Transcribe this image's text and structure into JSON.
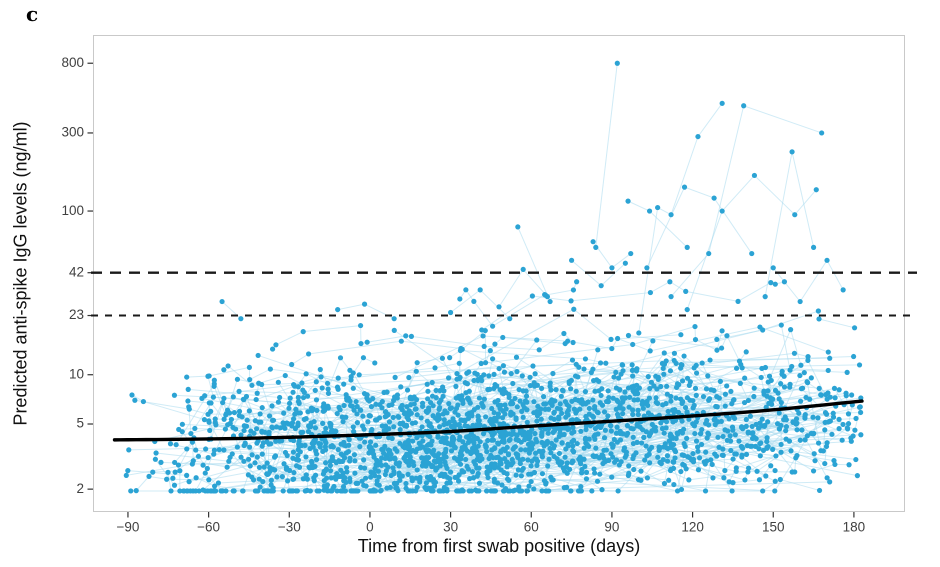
{
  "figure": {
    "panel_label": "c"
  },
  "chart_data": {
    "type": "scatter",
    "title": "",
    "panel_label": "c",
    "xlabel": "Time from first swab positive (days)",
    "ylabel": "Predicted anti-spike IgG levels (ng/ml)",
    "x_ticks": [
      -90,
      -60,
      -30,
      0,
      30,
      60,
      90,
      120,
      150,
      180
    ],
    "y_ticks": [
      2,
      5,
      10,
      23,
      42,
      100,
      300,
      800
    ],
    "y_scale": "log10",
    "x_range": [
      -103,
      199
    ],
    "y_range": [
      1.45,
      1190
    ],
    "grid": false,
    "legend": "none",
    "thresholds": [
      {
        "y": 42,
        "style": "dashed",
        "dash": [
          11,
          8
        ],
        "width": 2.4
      },
      {
        "y": 23,
        "style": "dashed",
        "dash": [
          7,
          7
        ],
        "width": 2.0
      }
    ],
    "trend_line": {
      "name": "population smooth",
      "points": [
        [
          -95,
          4.0
        ],
        [
          -60,
          4.05
        ],
        [
          -30,
          4.15
        ],
        [
          0,
          4.3
        ],
        [
          30,
          4.5
        ],
        [
          60,
          4.85
        ],
        [
          90,
          5.2
        ],
        [
          120,
          5.6
        ],
        [
          150,
          6.1
        ],
        [
          183,
          6.9
        ]
      ]
    },
    "highlight_trajectories": [
      [
        [
          84,
          60
        ],
        [
          92,
          800
        ]
      ],
      [
        [
          100,
          18
        ],
        [
          107,
          105
        ],
        [
          112,
          95
        ],
        [
          122,
          285
        ],
        [
          131,
          455
        ]
      ],
      [
        [
          112,
          30
        ],
        [
          126,
          55
        ],
        [
          139,
          440
        ],
        [
          168,
          300
        ]
      ],
      [
        [
          96,
          115
        ],
        [
          104,
          100
        ],
        [
          118,
          60
        ]
      ],
      [
        [
          55,
          80
        ],
        [
          67,
          28
        ]
      ],
      [
        [
          118,
          25
        ],
        [
          131,
          100
        ],
        [
          143,
          165
        ],
        [
          158,
          95
        ],
        [
          166,
          135
        ]
      ],
      [
        [
          103,
          45
        ],
        [
          117,
          140
        ],
        [
          128,
          120
        ],
        [
          142,
          55
        ]
      ],
      [
        [
          147,
          30
        ],
        [
          157,
          230
        ],
        [
          165,
          60
        ]
      ],
      [
        [
          83,
          65
        ],
        [
          90,
          45
        ],
        [
          97,
          55
        ]
      ],
      [
        [
          48,
          26
        ],
        [
          57,
          44
        ],
        [
          66,
          30
        ]
      ],
      [
        [
          75,
          50
        ],
        [
          86,
          35
        ],
        [
          95,
          48
        ]
      ],
      [
        [
          150,
          45
        ],
        [
          160,
          28
        ],
        [
          170,
          50
        ],
        [
          176,
          33
        ]
      ],
      [
        [
          30,
          24
        ],
        [
          41,
          33
        ],
        [
          52,
          22
        ]
      ],
      [
        [
          -55,
          28
        ],
        [
          -48,
          22
        ]
      ],
      [
        [
          -12,
          25
        ],
        [
          -2,
          27
        ],
        [
          9,
          22
        ]
      ]
    ],
    "scatter_summary": {
      "n_points_approx": 2500,
      "description": "Longitudinal per-participant anti-spike IgG trajectories; dense band between 2 and 10 ng/ml across -90 to 180 days, rising spread and high responders above the 23 and 42 ng/ml dashed thresholds after day 45."
    },
    "colors": {
      "point": "#2BA3D4",
      "trajectory": "#A9DAEE",
      "trend": "#000000",
      "threshold": "#1a1a1a",
      "axis_text": "#404040",
      "panel_border": "#c9c9c9"
    },
    "render": {
      "seed": 20210908,
      "n_subjects": 270
    }
  }
}
